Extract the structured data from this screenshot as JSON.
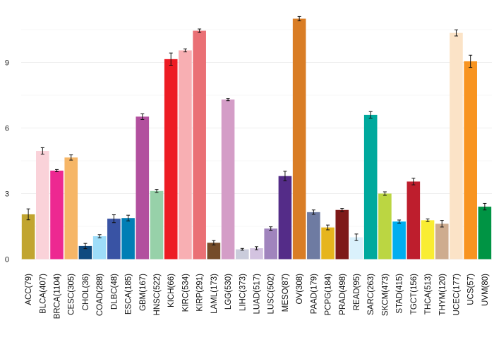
{
  "chart_data": {
    "type": "bar",
    "title": "",
    "xlabel": "",
    "ylabel": "",
    "ylim": [
      0,
      11.5
    ],
    "yticks": [
      0,
      3,
      6,
      9
    ],
    "grid": true,
    "error_bars": true,
    "categories": [
      "ACC(79)",
      "BLCA(407)",
      "BRCA(1104)",
      "CESC(305)",
      "CHOL(36)",
      "COAD(288)",
      "DLBC(48)",
      "ESCA(185)",
      "GBM(167)",
      "HNSC(522)",
      "KICH(66)",
      "KIRC(534)",
      "KIRP(291)",
      "LAML(173)",
      "LGG(530)",
      "LIHC(373)",
      "LUAD(517)",
      "LUSC(502)",
      "MESO(87)",
      "OV(308)",
      "PAAD(179)",
      "PCPG(184)",
      "PRAD(498)",
      "READ(95)",
      "SARC(263)",
      "SKCM(473)",
      "STAD(415)",
      "TGCT(156)",
      "THCA(513)",
      "THYM(120)",
      "UCEC(177)",
      "UCS(57)",
      "UVM(80)"
    ],
    "values": [
      2.05,
      4.95,
      4.05,
      4.65,
      0.6,
      1.05,
      1.85,
      1.88,
      6.52,
      3.12,
      9.15,
      9.55,
      10.45,
      0.75,
      7.3,
      0.45,
      0.5,
      1.4,
      3.8,
      11.0,
      2.15,
      1.45,
      2.25,
      1.0,
      6.6,
      3.0,
      1.72,
      3.55,
      1.78,
      1.62,
      10.35,
      9.05,
      2.4
    ],
    "errors": [
      0.25,
      0.15,
      0.05,
      0.12,
      0.12,
      0.07,
      0.18,
      0.13,
      0.13,
      0.07,
      0.28,
      0.07,
      0.08,
      0.1,
      0.05,
      0.04,
      0.07,
      0.08,
      0.22,
      0.1,
      0.1,
      0.11,
      0.07,
      0.15,
      0.15,
      0.08,
      0.07,
      0.15,
      0.06,
      0.15,
      0.14,
      0.28,
      0.15
    ],
    "colors": [
      "#C1A530",
      "#FAD2D9",
      "#ED2891",
      "#F6B667",
      "#104A7F",
      "#9EDDF9",
      "#3953A4",
      "#007EB5",
      "#B2509E",
      "#97D1A9",
      "#ED1C24",
      "#F8AFB3",
      "#EA7075",
      "#754C29",
      "#D49DC7",
      "#CACCDB",
      "#D3C3E0",
      "#A084BD",
      "#542C88",
      "#D97D25",
      "#6E7BA2",
      "#E6B51D",
      "#7E1918",
      "#DAF1FC",
      "#00A99D",
      "#BBD642",
      "#00AEEF",
      "#BE1E2D",
      "#F9ED32",
      "#CEAC8F",
      "#FBE3C7",
      "#F89420",
      "#009444"
    ]
  }
}
